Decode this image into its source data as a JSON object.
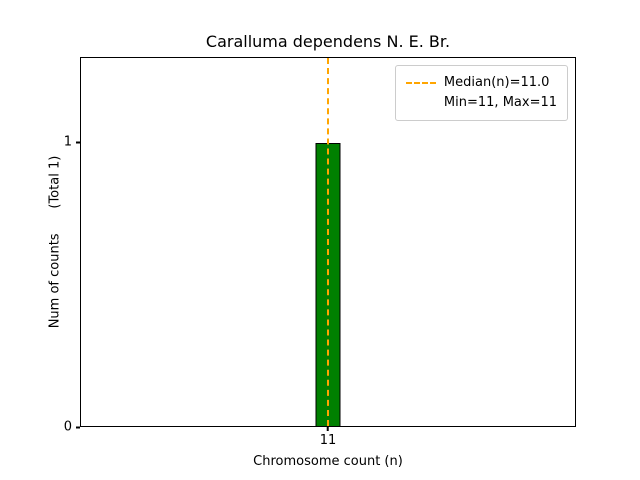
{
  "chart_data": {
    "type": "bar",
    "title": "Caralluma dependens N. E. Br.",
    "xlabel": "Chromosome count (n)",
    "ylabel": "Num of counts      (Total 1)",
    "categories": [
      "11"
    ],
    "values": [
      1
    ],
    "ylim": [
      0,
      1.3
    ],
    "yticks": [
      {
        "value": 0,
        "label": "0"
      },
      {
        "value": 1,
        "label": "1"
      }
    ],
    "bar_color": "#008000",
    "bar_edge_color": "#000000",
    "median_line": {
      "value": 11.0,
      "color": "#FFA500",
      "style": "dashed"
    },
    "legend": {
      "position": "upper right",
      "entries": [
        {
          "label": "Median(n)=11.0",
          "marker": "dashed-line",
          "color": "#FFA500"
        },
        {
          "label": "Min=11, Max=11",
          "marker": "none"
        }
      ]
    },
    "grid": false
  }
}
